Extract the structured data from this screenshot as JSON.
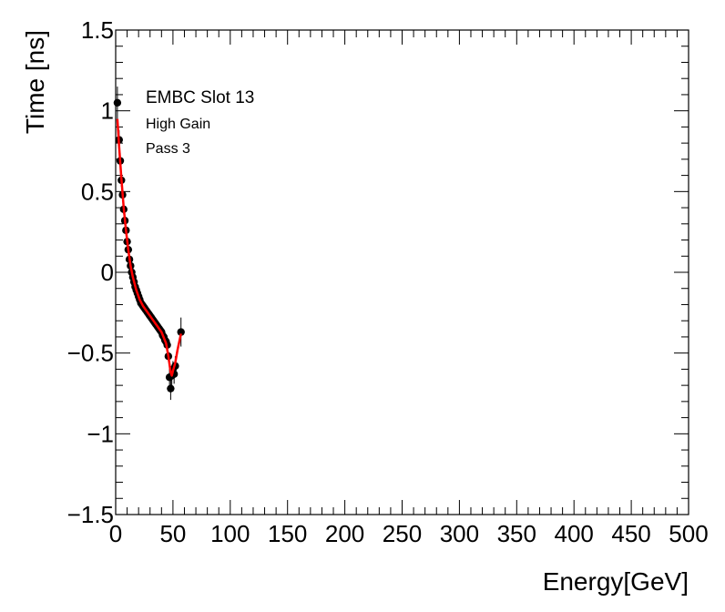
{
  "chart_data": {
    "type": "scatter",
    "title": "",
    "xlabel": "Energy[GeV]",
    "ylabel": "Time [ns]",
    "xlim": [
      0,
      500
    ],
    "ylim": [
      -1.5,
      1.5
    ],
    "x_ticks": [
      0,
      50,
      100,
      150,
      200,
      250,
      300,
      350,
      400,
      450,
      500
    ],
    "x_tick_labels": [
      "0",
      "50",
      "100",
      "150",
      "200",
      "250",
      "300",
      "350",
      "400",
      "450",
      "500"
    ],
    "y_ticks": [
      -1.5,
      -1,
      -0.5,
      0,
      0.5,
      1,
      1.5
    ],
    "y_tick_labels": [
      "−1.5",
      "−1",
      "−0.5",
      "0",
      "0.5",
      "1",
      "1.5"
    ],
    "annotations": [
      "EMBC Slot 13",
      "High Gain",
      "Pass 3"
    ],
    "grid": false,
    "marker_color": "#000000",
    "fit_color": "#ff0000",
    "series": [
      {
        "name": "data",
        "style": "markers-with-errors",
        "points": [
          {
            "x": 1.5,
            "y": 1.05,
            "err": 0.1
          },
          {
            "x": 3.0,
            "y": 0.82,
            "err": 0.06
          },
          {
            "x": 4.0,
            "y": 0.69,
            "err": 0.05
          },
          {
            "x": 5.0,
            "y": 0.57,
            "err": 0.04
          },
          {
            "x": 6.0,
            "y": 0.48,
            "err": 0.04
          },
          {
            "x": 7.0,
            "y": 0.39,
            "err": 0.03
          },
          {
            "x": 8.0,
            "y": 0.32,
            "err": 0.03
          },
          {
            "x": 9.0,
            "y": 0.26,
            "err": 0.03
          },
          {
            "x": 10.0,
            "y": 0.19,
            "err": 0.02
          },
          {
            "x": 11.0,
            "y": 0.14,
            "err": 0.02
          },
          {
            "x": 12.0,
            "y": 0.08,
            "err": 0.02
          },
          {
            "x": 13.0,
            "y": 0.04,
            "err": 0.02
          },
          {
            "x": 14.0,
            "y": 0.0,
            "err": 0.02
          },
          {
            "x": 15.0,
            "y": -0.03,
            "err": 0.02
          },
          {
            "x": 16.0,
            "y": -0.06,
            "err": 0.02
          },
          {
            "x": 17.0,
            "y": -0.09,
            "err": 0.02
          },
          {
            "x": 18.0,
            "y": -0.11,
            "err": 0.02
          },
          {
            "x": 19.0,
            "y": -0.13,
            "err": 0.02
          },
          {
            "x": 20.0,
            "y": -0.15,
            "err": 0.02
          },
          {
            "x": 21.0,
            "y": -0.17,
            "err": 0.02
          },
          {
            "x": 22.0,
            "y": -0.19,
            "err": 0.02
          },
          {
            "x": 23.0,
            "y": -0.2,
            "err": 0.02
          },
          {
            "x": 24.0,
            "y": -0.21,
            "err": 0.02
          },
          {
            "x": 25.0,
            "y": -0.22,
            "err": 0.02
          },
          {
            "x": 26.0,
            "y": -0.23,
            "err": 0.02
          },
          {
            "x": 27.0,
            "y": -0.24,
            "err": 0.02
          },
          {
            "x": 28.0,
            "y": -0.25,
            "err": 0.02
          },
          {
            "x": 29.0,
            "y": -0.26,
            "err": 0.02
          },
          {
            "x": 30.0,
            "y": -0.27,
            "err": 0.02
          },
          {
            "x": 31.0,
            "y": -0.28,
            "err": 0.02
          },
          {
            "x": 32.0,
            "y": -0.29,
            "err": 0.02
          },
          {
            "x": 33.0,
            "y": -0.3,
            "err": 0.02
          },
          {
            "x": 34.0,
            "y": -0.31,
            "err": 0.02
          },
          {
            "x": 35.0,
            "y": -0.32,
            "err": 0.02
          },
          {
            "x": 36.0,
            "y": -0.33,
            "err": 0.02
          },
          {
            "x": 37.0,
            "y": -0.34,
            "err": 0.02
          },
          {
            "x": 38.0,
            "y": -0.35,
            "err": 0.02
          },
          {
            "x": 39.0,
            "y": -0.36,
            "err": 0.02
          },
          {
            "x": 40.0,
            "y": -0.37,
            "err": 0.02
          },
          {
            "x": 41.0,
            "y": -0.39,
            "err": 0.02
          },
          {
            "x": 42.0,
            "y": -0.4,
            "err": 0.02
          },
          {
            "x": 43.0,
            "y": -0.42,
            "err": 0.02
          },
          {
            "x": 44.0,
            "y": -0.43,
            "err": 0.02
          },
          {
            "x": 45.0,
            "y": -0.45,
            "err": 0.02
          },
          {
            "x": 46.0,
            "y": -0.52,
            "err": 0.03
          },
          {
            "x": 47.0,
            "y": -0.65,
            "err": 0.05
          },
          {
            "x": 48.0,
            "y": -0.72,
            "err": 0.07
          },
          {
            "x": 49.0,
            "y": -0.64,
            "err": 0.06
          },
          {
            "x": 50.0,
            "y": -0.6,
            "err": 0.05
          },
          {
            "x": 51.0,
            "y": -0.63,
            "err": 0.06
          },
          {
            "x": 52.0,
            "y": -0.58,
            "err": 0.06
          },
          {
            "x": 57.0,
            "y": -0.37,
            "err": 0.09
          }
        ]
      },
      {
        "name": "fit",
        "style": "line",
        "points": [
          {
            "x": 1.5,
            "y": 0.95
          },
          {
            "x": 3.0,
            "y": 0.78
          },
          {
            "x": 5.0,
            "y": 0.58
          },
          {
            "x": 7.0,
            "y": 0.4
          },
          {
            "x": 9.0,
            "y": 0.26
          },
          {
            "x": 11.0,
            "y": 0.14
          },
          {
            "x": 13.0,
            "y": 0.04
          },
          {
            "x": 15.0,
            "y": -0.03
          },
          {
            "x": 18.0,
            "y": -0.11
          },
          {
            "x": 21.0,
            "y": -0.17
          },
          {
            "x": 24.0,
            "y": -0.21
          },
          {
            "x": 28.0,
            "y": -0.25
          },
          {
            "x": 32.0,
            "y": -0.29
          },
          {
            "x": 36.0,
            "y": -0.33
          },
          {
            "x": 40.0,
            "y": -0.37
          },
          {
            "x": 44.0,
            "y": -0.44
          },
          {
            "x": 46.0,
            "y": -0.52
          },
          {
            "x": 48.0,
            "y": -0.62
          },
          {
            "x": 49.0,
            "y": -0.64
          },
          {
            "x": 50.0,
            "y": -0.61
          },
          {
            "x": 52.0,
            "y": -0.56
          },
          {
            "x": 54.0,
            "y": -0.48
          },
          {
            "x": 57.0,
            "y": -0.38
          }
        ]
      }
    ]
  }
}
